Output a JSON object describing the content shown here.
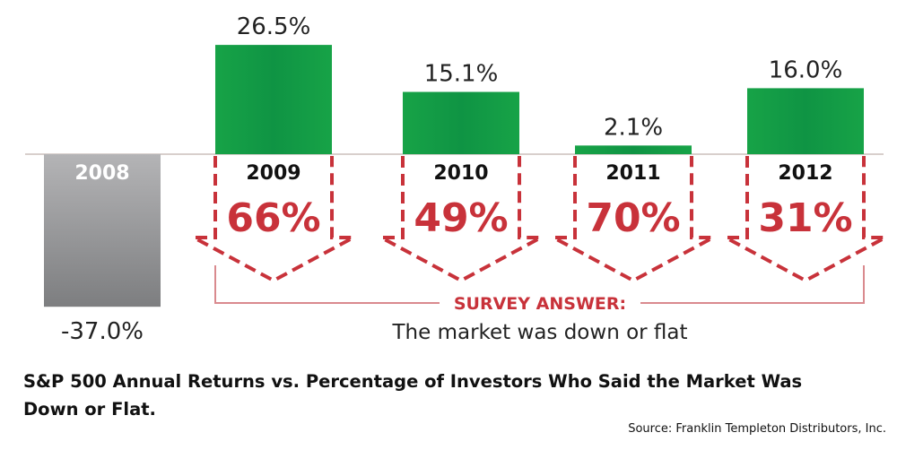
{
  "chart_data": {
    "type": "bar",
    "title": "S&P 500 Annual Returns vs. Percentage of Investors Who Said the Market Was Down or Flat.",
    "source": "Source: Franklin Templeton Distributors, Inc.",
    "categories": [
      "2008",
      "2009",
      "2010",
      "2011",
      "2012"
    ],
    "series": [
      {
        "name": "S&P 500 Annual Returns",
        "values": [
          -37.0,
          26.5,
          15.1,
          2.1,
          16.0
        ],
        "labels": [
          "-37.0%",
          "26.5%",
          "15.1%",
          "2.1%",
          "16.0%"
        ]
      },
      {
        "name": "Percentage of Investors Who Said the Market Was Down or Flat",
        "values": [
          null,
          66,
          49,
          70,
          31
        ],
        "labels": [
          "",
          "66%",
          "49%",
          "70%",
          "31%"
        ]
      }
    ],
    "survey_label": "SURVEY ANSWER:",
    "survey_text": "The market was down or flat",
    "colors": {
      "positive": "#139a43",
      "negative": "#8a8a8c",
      "survey": "#c8323a",
      "bracket": "#d98a8e",
      "baseline": "#d8cfcc"
    },
    "grid": false,
    "legend": "none"
  }
}
